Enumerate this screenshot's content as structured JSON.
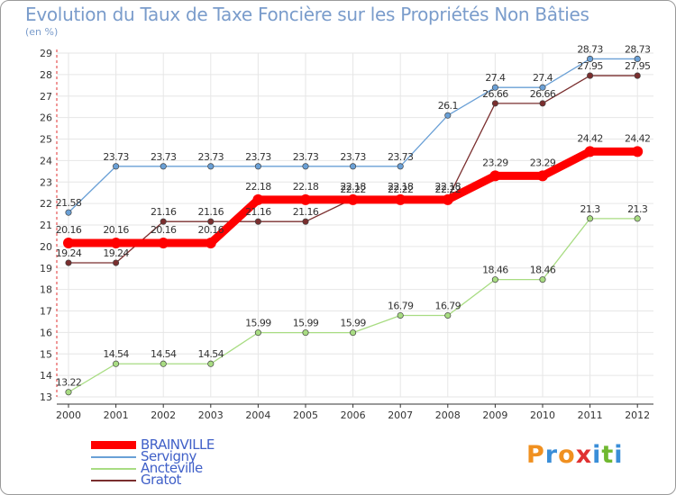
{
  "header": {
    "title": "Evolution du Taux de Taxe Foncière sur les Propriétés Non Bâties",
    "unit": "(en %)"
  },
  "brand": {
    "letters": [
      "P",
      "r",
      "o",
      "x",
      "i",
      "t",
      "i"
    ],
    "colors": [
      "#f09020",
      "#3a8ed8",
      "#f09020",
      "#e03030",
      "#3a8ed8",
      "#70b830",
      "#3a8ed8"
    ]
  },
  "chart_data": {
    "type": "line",
    "title": "Evolution du Taux de Taxe Foncière sur les Propriétés Non Bâties",
    "ylabel": "(en %)",
    "xlabel": "",
    "ylim": [
      13,
      29
    ],
    "yticks": [
      13,
      14,
      15,
      16,
      17,
      18,
      19,
      20,
      21,
      22,
      23,
      24,
      25,
      26,
      27,
      28,
      29
    ],
    "categories": [
      "2000",
      "2001",
      "2002",
      "2003",
      "2004",
      "2005",
      "2006",
      "2007",
      "2008",
      "2009",
      "2010",
      "2011",
      "2012"
    ],
    "grid": true,
    "legend_position": "bottom-left",
    "series": [
      {
        "name": "BRAINVILLE",
        "color": "#ff0000",
        "values": [
          20.16,
          20.16,
          20.16,
          20.16,
          22.18,
          22.18,
          22.18,
          22.18,
          22.18,
          23.29,
          23.29,
          24.42,
          24.42
        ],
        "labels": [
          "20.16",
          "20.16",
          "20.16",
          "20.16",
          "22.18",
          "22.18",
          "22.18",
          "22.18",
          "22.18",
          "23.29",
          "23.29",
          "24.42",
          "24.42"
        ]
      },
      {
        "name": "Servigny",
        "color": "#6aa0d6",
        "values": [
          21.58,
          23.73,
          23.73,
          23.73,
          23.73,
          23.73,
          23.73,
          23.73,
          26.1,
          27.4,
          27.4,
          28.73,
          28.73
        ],
        "labels": [
          "21.58",
          "23.73",
          "23.73",
          "23.73",
          "23.73",
          "23.73",
          "23.73",
          "23.73",
          "26.1",
          "27.4",
          "27.4",
          "28.73",
          "28.73"
        ]
      },
      {
        "name": "Ancteville",
        "color": "#a8dc82",
        "values": [
          13.22,
          14.54,
          14.54,
          14.54,
          15.99,
          15.99,
          15.99,
          16.79,
          16.79,
          18.46,
          18.46,
          21.3,
          21.3
        ],
        "labels": [
          "13.22",
          "14.54",
          "14.54",
          "14.54",
          "15.99",
          "15.99",
          "15.99",
          "16.79",
          "16.79",
          "18.46",
          "18.46",
          "21.3",
          "21.3"
        ]
      },
      {
        "name": "Gratot",
        "color": "#7a2e2e",
        "values": [
          19.24,
          19.24,
          21.16,
          21.16,
          21.16,
          21.16,
          22.22,
          22.22,
          22.22,
          26.66,
          26.66,
          27.95,
          27.95
        ],
        "labels": [
          "19.24",
          "19.24",
          "21.16",
          "21.16",
          "21.16",
          "21.16",
          "22.22",
          "22.22",
          "22.22",
          "26.66",
          "26.66",
          "27.95",
          "27.95"
        ]
      }
    ]
  }
}
